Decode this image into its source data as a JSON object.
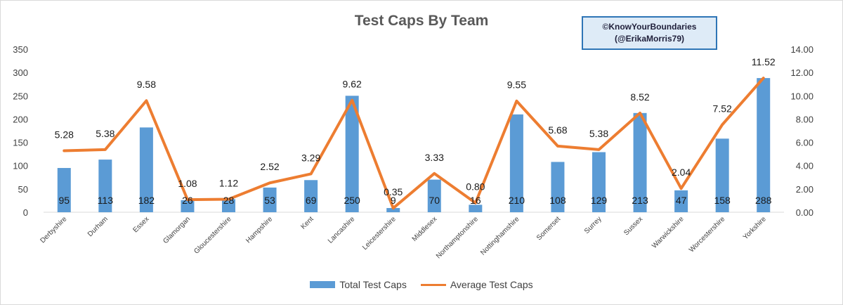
{
  "chart_data": {
    "type": "bar",
    "title": "Test Caps By Team",
    "categories": [
      "Derbyshire",
      "Durham",
      "Essex",
      "Glamorgan",
      "Gloucestershire",
      "Hampshire",
      "Kent",
      "Lancashire",
      "Leicestershire",
      "Middlesex",
      "Northamptonshire",
      "Nottinghamshire",
      "Somerset",
      "Surrey",
      "Sussex",
      "Warwickshire",
      "Worcestershire",
      "Yorkshire"
    ],
    "series": [
      {
        "name": "Total Test Caps",
        "type": "bar",
        "axis": "left",
        "color": "#5b9bd5",
        "values": [
          95,
          113,
          182,
          26,
          28,
          53,
          69,
          250,
          9,
          70,
          16,
          210,
          108,
          129,
          213,
          47,
          158,
          288
        ],
        "labels": [
          "95",
          "113",
          "182",
          "26",
          "28",
          "53",
          "69",
          "250",
          "9",
          "70",
          "16",
          "210",
          "108",
          "129",
          "213",
          "47",
          "158",
          "288"
        ]
      },
      {
        "name": "Average Test Caps",
        "type": "line",
        "axis": "right",
        "color": "#ed7d31",
        "values": [
          5.28,
          5.38,
          9.58,
          1.08,
          1.12,
          2.52,
          3.29,
          9.62,
          0.35,
          3.33,
          0.8,
          9.55,
          5.68,
          5.38,
          8.52,
          2.04,
          7.52,
          11.52
        ],
        "labels": [
          "5.28",
          "5.38",
          "9.58",
          "1.08",
          "1.12",
          "2.52",
          "3.29",
          "9.62",
          "0.35",
          "3.33",
          "0.80",
          "9.55",
          "5.68",
          "5.38",
          "8.52",
          "2.04",
          "7.52",
          "11.52"
        ]
      }
    ],
    "y_left": {
      "min": 0,
      "max": 350,
      "ticks": [
        0,
        50,
        100,
        150,
        200,
        250,
        300,
        350
      ],
      "tick_labels": [
        "0",
        "50",
        "100",
        "150",
        "200",
        "250",
        "300",
        "350"
      ]
    },
    "y_right": {
      "min": 0,
      "max": 14,
      "ticks": [
        0,
        2,
        4,
        6,
        8,
        10,
        12,
        14
      ],
      "tick_labels": [
        "0.00",
        "2.00",
        "4.00",
        "6.00",
        "8.00",
        "10.00",
        "12.00",
        "14.00"
      ]
    },
    "grid": false,
    "legend_position": "bottom"
  },
  "credit": {
    "line1": "©KnowYourBoundaries",
    "line2": "(@ErikaMorris79)"
  },
  "legend": {
    "bar_label": "Total Test Caps",
    "line_label": "Average Test Caps"
  }
}
